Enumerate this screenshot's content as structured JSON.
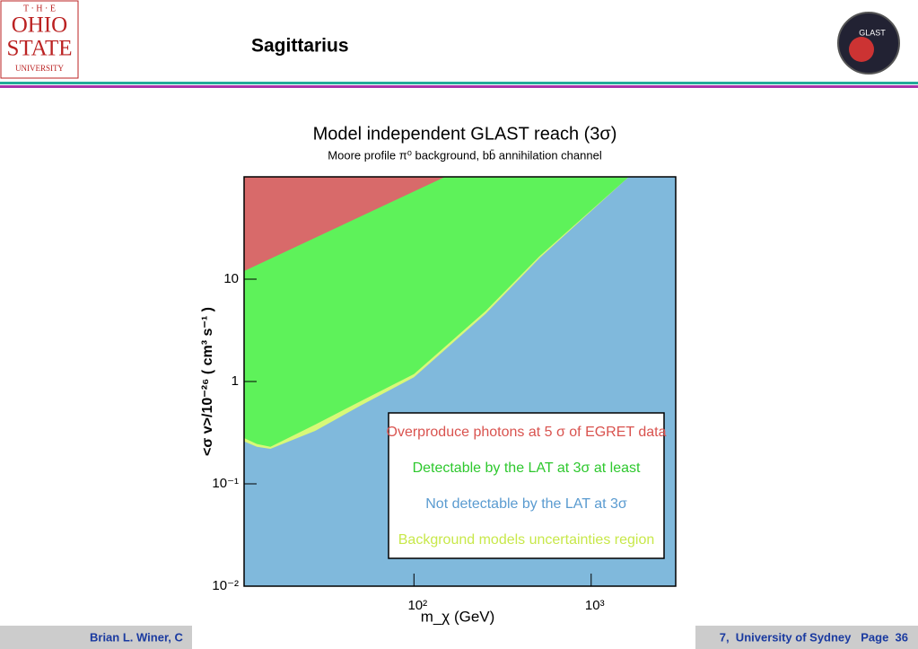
{
  "header": {
    "logo": [
      "T · H · E",
      "OHIO",
      "STATE",
      "UNIVERSITY"
    ],
    "title": "Sagittarius",
    "badge": "GLAST"
  },
  "footer": {
    "left": "Brian L. Winer, C",
    "right": "7,  University of Sydney   Page  36"
  },
  "chart_data": {
    "type": "region",
    "title": "Model independent GLAST reach (3σ)",
    "subtitle": "Moore profile π⁰ background, bb̄ annihilation channel",
    "xlabel": "m_χ (GeV)",
    "ylabel": "<σ v>/10⁻²⁶ ( cm³ s⁻¹ )",
    "xscale": "log",
    "yscale": "log",
    "xlim": [
      11,
      3000
    ],
    "ylim": [
      0.01,
      100
    ],
    "xticks": [
      {
        "value": 100,
        "label": "10²"
      },
      {
        "value": 1000,
        "label": "10³"
      }
    ],
    "yticks": [
      {
        "value": 0.01,
        "label": "10⁻²"
      },
      {
        "value": 0.1,
        "label": "10⁻¹"
      },
      1,
      10
    ],
    "legend_position": "lower right",
    "series": [
      {
        "name": "Not detectable by the LAT at 3σ",
        "color": "#80b9dc",
        "x": [
          11,
          3000,
          3000
        ],
        "y": [
          0.01,
          0.01,
          100
        ]
      },
      {
        "name": "Background models uncertainties region",
        "color": "#d8f878",
        "x": [
          11,
          13,
          15.5,
          27.8,
          49.8,
          100,
          254,
          510,
          1630
        ],
        "y": [
          0.26,
          0.23,
          0.22,
          0.33,
          0.58,
          1.1,
          4.6,
          16,
          100
        ]
      },
      {
        "name": "Detectable by the LAT at 3σ at least",
        "color": "#5ef25a",
        "x": [
          11,
          13,
          15.5,
          27.8,
          49.8,
          100,
          254,
          510,
          1630
        ],
        "y": [
          0.28,
          0.245,
          0.23,
          0.38,
          0.64,
          1.18,
          4.9,
          16.7,
          100
        ]
      },
      {
        "name": "Overproduce photons at 5 σ of EGRET data",
        "color": "#d86a6a",
        "x": [
          11,
          150
        ],
        "y": [
          12,
          100
        ]
      }
    ]
  }
}
